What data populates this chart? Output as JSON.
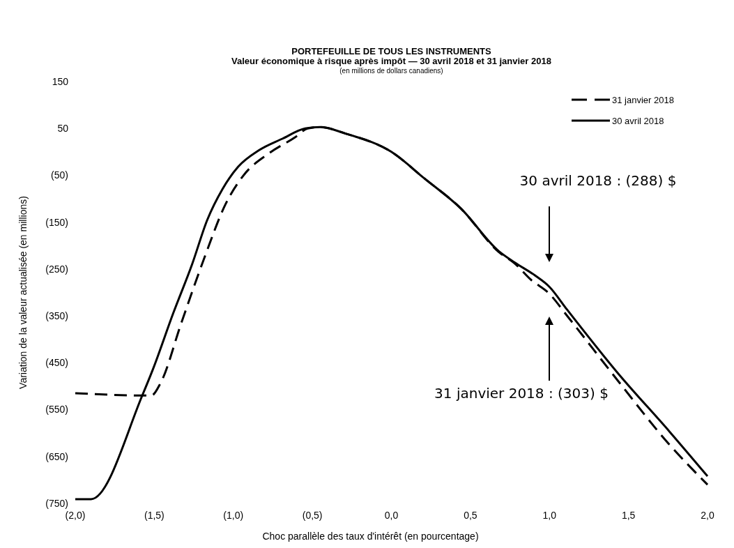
{
  "chart_data": {
    "type": "line",
    "title": "PORTEFEUILLE DE TOUS LES INSTRUMENTS",
    "subtitle": "Valeur économique à risque après impôt — 30 avril 2018 et 31 janvier 2018",
    "xlabel": "Choc parallèle des taux d'intérêt (en pourcentage)",
    "ylabel": "Variation de la valeur actualisée (en millions)",
    "annotations": [
      "(en millions de dollars canadiens)",
      "30 avril 2018 : (288) $",
      "31 janvier 2018 : (303) $"
    ],
    "xlim": [
      -2,
      2
    ],
    "ylim": [
      -750,
      150
    ],
    "xticks": [
      {
        "value": -2,
        "label": "(2,0)"
      },
      {
        "value": -1.5,
        "label": "(1,5)"
      },
      {
        "value": -1,
        "label": "(1,0)"
      },
      {
        "value": -0.5,
        "label": "(0,5)"
      },
      {
        "value": 0,
        "label": "0,0"
      },
      {
        "value": 0.5,
        "label": "0,5"
      },
      {
        "value": 1,
        "label": "1,0"
      },
      {
        "value": 1.5,
        "label": "1,5"
      },
      {
        "value": 2,
        "label": "2,0"
      }
    ],
    "yticks": [
      150,
      50,
      {
        "value": -50,
        "label": "(50)"
      },
      {
        "value": -150,
        "label": "(150)"
      },
      {
        "value": -250,
        "label": "(250)"
      },
      {
        "value": -350,
        "label": "(350)"
      },
      {
        "value": -450,
        "label": "(450)"
      },
      {
        "value": -550,
        "label": "(550)"
      },
      {
        "value": -650,
        "label": "(650)"
      },
      {
        "value": -750,
        "label": "(750)"
      }
    ],
    "grid": false,
    "legend": "top right",
    "marker": "none",
    "series": [
      {
        "name": "31 janvier 2018",
        "color": "#000000",
        "line_style": "dashed",
        "x": [
          -2,
          -1.52,
          -1.46,
          -1.33,
          -1.18,
          -1.05,
          -0.94,
          -0.77,
          -0.61,
          -0.53,
          -0.45,
          -0.29,
          0,
          0.21,
          0.44,
          0.68,
          0.78,
          0.88,
          1,
          1.11,
          1.43,
          1.76,
          2
        ],
        "values": [
          -515,
          -520,
          -493,
          -366,
          -223,
          -112,
          -52,
          -2,
          31,
          50,
          53,
          39,
          0,
          -57,
          -121,
          -214,
          -238,
          -272,
          -303,
          -349,
          -487,
          -625,
          -710
        ]
      },
      {
        "name": "30 avril 2018",
        "color": "#000000",
        "line_style": "solid",
        "x": [
          -2,
          -1.9,
          -1.574,
          -1.51,
          -1.38,
          -1.26,
          -1.166,
          -1.068,
          -0.97,
          -0.84,
          -0.69,
          -0.546,
          -0.45,
          -0.29,
          0,
          0.21,
          0.44,
          0.68,
          0.78,
          0.91,
          1,
          1.11,
          1.43,
          1.76,
          2
        ],
        "values": [
          -741,
          -741,
          -518,
          -465,
          -344,
          -239,
          -146,
          -79,
          -32,
          3,
          28,
          50,
          53,
          39,
          0,
          -57,
          -121,
          -212,
          -236,
          -264,
          -288,
          -336,
          -471,
          -597,
          -692
        ]
      }
    ]
  }
}
